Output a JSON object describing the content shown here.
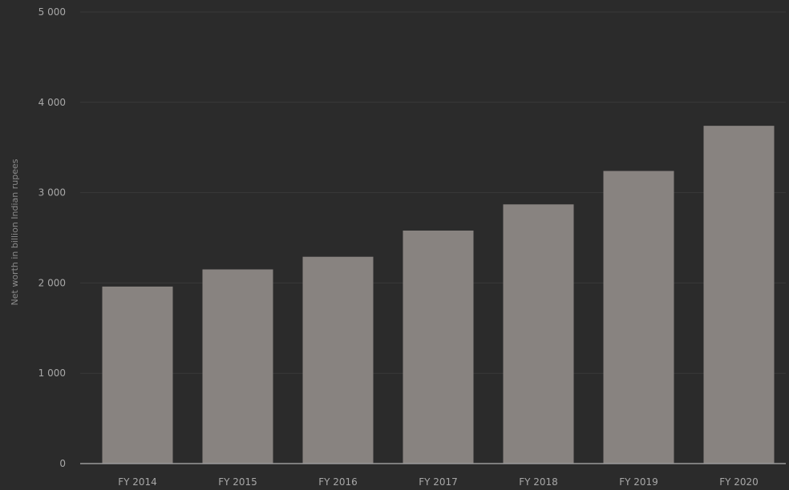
{
  "chart_data": {
    "type": "bar",
    "categories": [
      "FY 2014",
      "FY 2015",
      "FY 2016",
      "FY 2017",
      "FY 2018",
      "FY 2019",
      "FY 2020"
    ],
    "values": [
      1960,
      2150,
      2290,
      2580,
      2870,
      3240,
      3740
    ],
    "title": "",
    "xlabel": "",
    "ylabel": "Net worth in billion Indian rupees",
    "ylim": [
      0,
      5000
    ],
    "yticks": [
      0,
      1000,
      2000,
      3000,
      4000,
      5000
    ],
    "ytick_labels": [
      "0",
      "1 000",
      "2 000",
      "3 000",
      "4 000",
      "5 000"
    ],
    "grid": true,
    "colors": {
      "background": "#2b2b2b",
      "bar": "#888380",
      "grid": "#3a3a3a",
      "axis": "#9a9a9a",
      "text": "#a8a8a8"
    }
  }
}
